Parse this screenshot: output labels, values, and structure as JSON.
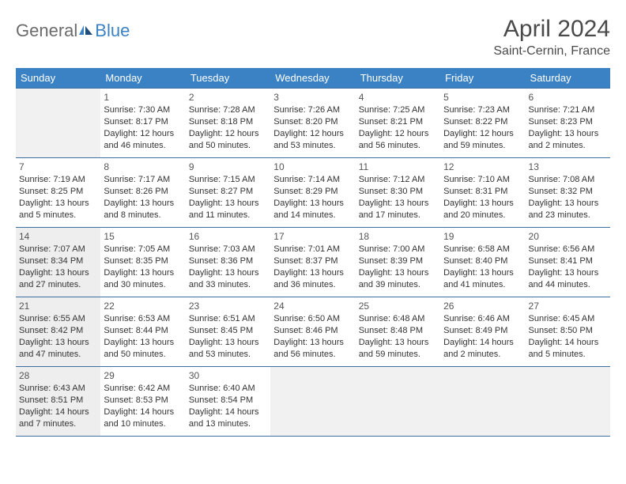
{
  "logo": {
    "general": "General",
    "blue": "Blue"
  },
  "title": {
    "month_year": "April 2024",
    "location": "Saint-Cernin, France"
  },
  "colors": {
    "header_bg": "#3b82c4",
    "header_text": "#ffffff",
    "cell_border": "#3b6fa0",
    "empty_bg": "#f1f1f1",
    "shaded_bg": "#eeeeee",
    "text": "#333333",
    "logo_gray": "#6b6b6b",
    "logo_blue": "#3b82c4"
  },
  "weekdays": [
    "Sunday",
    "Monday",
    "Tuesday",
    "Wednesday",
    "Thursday",
    "Friday",
    "Saturday"
  ],
  "weeks": [
    [
      {
        "empty": true
      },
      {
        "day": "1",
        "sunrise": "Sunrise: 7:30 AM",
        "sunset": "Sunset: 8:17 PM",
        "daylight": "Daylight: 12 hours and 46 minutes."
      },
      {
        "day": "2",
        "sunrise": "Sunrise: 7:28 AM",
        "sunset": "Sunset: 8:18 PM",
        "daylight": "Daylight: 12 hours and 50 minutes."
      },
      {
        "day": "3",
        "sunrise": "Sunrise: 7:26 AM",
        "sunset": "Sunset: 8:20 PM",
        "daylight": "Daylight: 12 hours and 53 minutes."
      },
      {
        "day": "4",
        "sunrise": "Sunrise: 7:25 AM",
        "sunset": "Sunset: 8:21 PM",
        "daylight": "Daylight: 12 hours and 56 minutes."
      },
      {
        "day": "5",
        "sunrise": "Sunrise: 7:23 AM",
        "sunset": "Sunset: 8:22 PM",
        "daylight": "Daylight: 12 hours and 59 minutes."
      },
      {
        "day": "6",
        "sunrise": "Sunrise: 7:21 AM",
        "sunset": "Sunset: 8:23 PM",
        "daylight": "Daylight: 13 hours and 2 minutes."
      }
    ],
    [
      {
        "day": "7",
        "sunrise": "Sunrise: 7:19 AM",
        "sunset": "Sunset: 8:25 PM",
        "daylight": "Daylight: 13 hours and 5 minutes."
      },
      {
        "day": "8",
        "sunrise": "Sunrise: 7:17 AM",
        "sunset": "Sunset: 8:26 PM",
        "daylight": "Daylight: 13 hours and 8 minutes."
      },
      {
        "day": "9",
        "sunrise": "Sunrise: 7:15 AM",
        "sunset": "Sunset: 8:27 PM",
        "daylight": "Daylight: 13 hours and 11 minutes."
      },
      {
        "day": "10",
        "sunrise": "Sunrise: 7:14 AM",
        "sunset": "Sunset: 8:29 PM",
        "daylight": "Daylight: 13 hours and 14 minutes."
      },
      {
        "day": "11",
        "sunrise": "Sunrise: 7:12 AM",
        "sunset": "Sunset: 8:30 PM",
        "daylight": "Daylight: 13 hours and 17 minutes."
      },
      {
        "day": "12",
        "sunrise": "Sunrise: 7:10 AM",
        "sunset": "Sunset: 8:31 PM",
        "daylight": "Daylight: 13 hours and 20 minutes."
      },
      {
        "day": "13",
        "sunrise": "Sunrise: 7:08 AM",
        "sunset": "Sunset: 8:32 PM",
        "daylight": "Daylight: 13 hours and 23 minutes."
      }
    ],
    [
      {
        "day": "14",
        "shaded": true,
        "sunrise": "Sunrise: 7:07 AM",
        "sunset": "Sunset: 8:34 PM",
        "daylight": "Daylight: 13 hours and 27 minutes."
      },
      {
        "day": "15",
        "sunrise": "Sunrise: 7:05 AM",
        "sunset": "Sunset: 8:35 PM",
        "daylight": "Daylight: 13 hours and 30 minutes."
      },
      {
        "day": "16",
        "sunrise": "Sunrise: 7:03 AM",
        "sunset": "Sunset: 8:36 PM",
        "daylight": "Daylight: 13 hours and 33 minutes."
      },
      {
        "day": "17",
        "sunrise": "Sunrise: 7:01 AM",
        "sunset": "Sunset: 8:37 PM",
        "daylight": "Daylight: 13 hours and 36 minutes."
      },
      {
        "day": "18",
        "sunrise": "Sunrise: 7:00 AM",
        "sunset": "Sunset: 8:39 PM",
        "daylight": "Daylight: 13 hours and 39 minutes."
      },
      {
        "day": "19",
        "sunrise": "Sunrise: 6:58 AM",
        "sunset": "Sunset: 8:40 PM",
        "daylight": "Daylight: 13 hours and 41 minutes."
      },
      {
        "day": "20",
        "sunrise": "Sunrise: 6:56 AM",
        "sunset": "Sunset: 8:41 PM",
        "daylight": "Daylight: 13 hours and 44 minutes."
      }
    ],
    [
      {
        "day": "21",
        "shaded": true,
        "sunrise": "Sunrise: 6:55 AM",
        "sunset": "Sunset: 8:42 PM",
        "daylight": "Daylight: 13 hours and 47 minutes."
      },
      {
        "day": "22",
        "sunrise": "Sunrise: 6:53 AM",
        "sunset": "Sunset: 8:44 PM",
        "daylight": "Daylight: 13 hours and 50 minutes."
      },
      {
        "day": "23",
        "sunrise": "Sunrise: 6:51 AM",
        "sunset": "Sunset: 8:45 PM",
        "daylight": "Daylight: 13 hours and 53 minutes."
      },
      {
        "day": "24",
        "sunrise": "Sunrise: 6:50 AM",
        "sunset": "Sunset: 8:46 PM",
        "daylight": "Daylight: 13 hours and 56 minutes."
      },
      {
        "day": "25",
        "sunrise": "Sunrise: 6:48 AM",
        "sunset": "Sunset: 8:48 PM",
        "daylight": "Daylight: 13 hours and 59 minutes."
      },
      {
        "day": "26",
        "sunrise": "Sunrise: 6:46 AM",
        "sunset": "Sunset: 8:49 PM",
        "daylight": "Daylight: 14 hours and 2 minutes."
      },
      {
        "day": "27",
        "sunrise": "Sunrise: 6:45 AM",
        "sunset": "Sunset: 8:50 PM",
        "daylight": "Daylight: 14 hours and 5 minutes."
      }
    ],
    [
      {
        "day": "28",
        "shaded": true,
        "sunrise": "Sunrise: 6:43 AM",
        "sunset": "Sunset: 8:51 PM",
        "daylight": "Daylight: 14 hours and 7 minutes."
      },
      {
        "day": "29",
        "sunrise": "Sunrise: 6:42 AM",
        "sunset": "Sunset: 8:53 PM",
        "daylight": "Daylight: 14 hours and 10 minutes."
      },
      {
        "day": "30",
        "sunrise": "Sunrise: 6:40 AM",
        "sunset": "Sunset: 8:54 PM",
        "daylight": "Daylight: 14 hours and 13 minutes."
      },
      {
        "empty": true
      },
      {
        "empty": true
      },
      {
        "empty": true
      },
      {
        "empty": true
      }
    ]
  ]
}
